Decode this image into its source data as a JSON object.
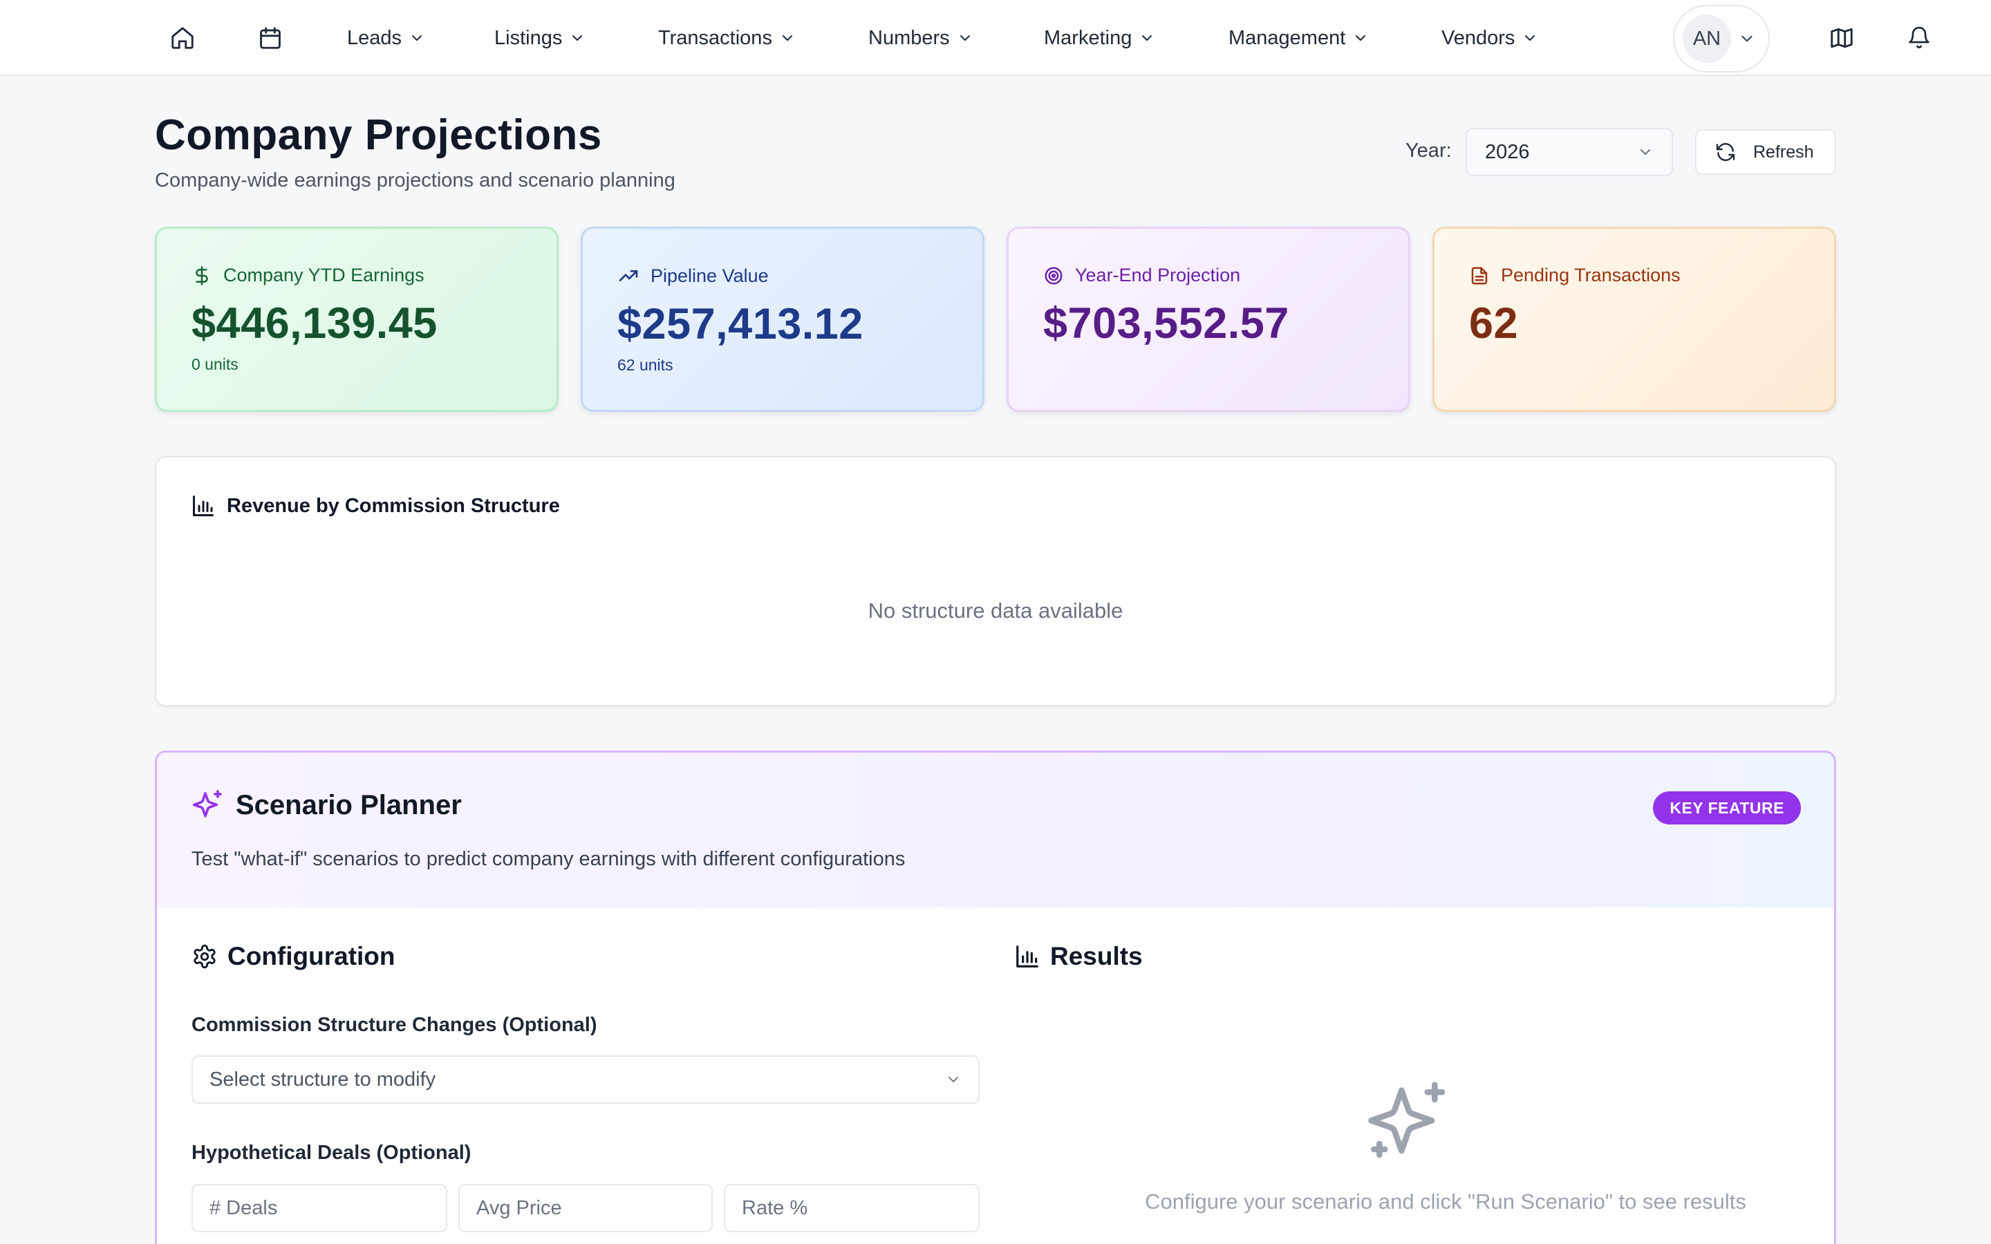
{
  "nav": {
    "icons": [
      "home-icon",
      "calendar-icon",
      "map-icon",
      "bell-icon"
    ],
    "menus": [
      {
        "label": "Leads"
      },
      {
        "label": "Listings"
      },
      {
        "label": "Transactions"
      },
      {
        "label": "Numbers"
      },
      {
        "label": "Marketing"
      },
      {
        "label": "Management"
      },
      {
        "label": "Vendors"
      }
    ],
    "avatar_initials": "AN"
  },
  "header": {
    "title": "Company Projections",
    "subtitle": "Company-wide earnings projections and scenario planning",
    "year_label": "Year:",
    "year_value": "2026",
    "refresh_label": "Refresh"
  },
  "stats": [
    {
      "label": "Company YTD Earnings",
      "value": "$446,139.45",
      "sub": "0 units",
      "icon": "dollar-icon",
      "color": "#166534"
    },
    {
      "label": "Pipeline Value",
      "value": "$257,413.12",
      "sub": "62 units",
      "icon": "trending-up-icon",
      "color": "#1e3a8a"
    },
    {
      "label": "Year-End Projection",
      "value": "$703,552.57",
      "icon": "target-icon",
      "color": "#6b21a8"
    },
    {
      "label": "Pending Transactions",
      "value": "62",
      "icon": "file-text-icon",
      "color": "#9a3412"
    }
  ],
  "revenue": {
    "title": "Revenue by Commission Structure",
    "empty_text": "No structure data available"
  },
  "scenario": {
    "title": "Scenario Planner",
    "badge": "KEY FEATURE",
    "description": "Test \"what-if\" scenarios to predict company earnings with different configurations",
    "config_title": "Configuration",
    "results_title": "Results",
    "structure_label": "Commission Structure Changes (Optional)",
    "structure_placeholder": "Select structure to modify",
    "deals_label": "Hypothetical Deals (Optional)",
    "deals_placeholder": "# Deals",
    "price_placeholder": "Avg Price",
    "rate_placeholder": "Rate %",
    "results_empty": "Configure your scenario and click \"Run Scenario\" to see results",
    "accent": "#9333ea"
  }
}
